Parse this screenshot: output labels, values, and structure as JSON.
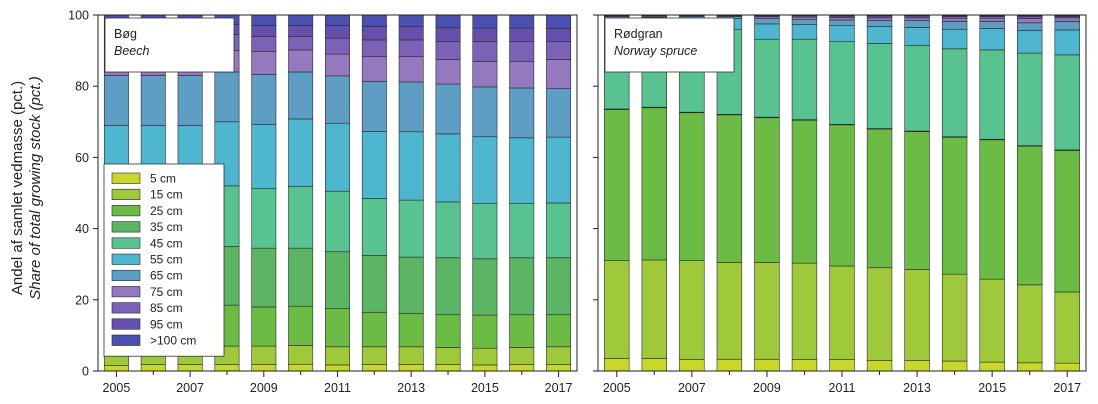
{
  "y_label_line1": "Andel af samlet vedmasse (pct.)",
  "y_label_line2": "Share of total growing stock (pct.)",
  "chart_data": {
    "type": "bar",
    "stacked": true,
    "ylim": [
      0,
      100
    ],
    "yticks": [
      "0",
      "20",
      "40",
      "60",
      "80",
      "100"
    ],
    "x": [
      "2005",
      "2006",
      "2007",
      "2008",
      "2009",
      "2010",
      "2011",
      "2012",
      "2013",
      "2014",
      "2015",
      "2016",
      "2017"
    ],
    "xtick_labels": [
      "2005",
      "2007",
      "2009",
      "2011",
      "2013",
      "2015",
      "2017"
    ],
    "legend": {
      "placement": "lower-left of left panel",
      "labels": [
        "5 cm",
        "15 cm",
        "25 cm",
        "35 cm",
        "45 cm",
        "55 cm",
        "65 cm",
        "75 cm",
        "85 cm",
        "95 cm",
        ">100 cm"
      ],
      "colors": [
        "#c8d82a",
        "#9fc93a",
        "#6bbb45",
        "#5bb565",
        "#58c291",
        "#4eb6cf",
        "#5f9ec4",
        "#9579bf",
        "#7b62b7",
        "#6550ad",
        "#4b4faf"
      ]
    },
    "panels": [
      {
        "name_line1": "Bøg",
        "name_line2": "Beech",
        "series_cumulative": [
          [
            1.5,
            1.8,
            1.8,
            1.8,
            1.8,
            1.9,
            1.7,
            1.8,
            1.8,
            1.8,
            1.7,
            1.8,
            1.8
          ],
          [
            6.8,
            7.0,
            7.0,
            7.0,
            7.0,
            7.2,
            6.8,
            6.8,
            6.8,
            6.6,
            6.4,
            6.6,
            6.8
          ],
          [
            18.0,
            18.0,
            18.3,
            18.5,
            18.0,
            18.2,
            17.5,
            16.5,
            16.2,
            15.8,
            15.7,
            15.8,
            15.8
          ],
          [
            34.5,
            34.7,
            35.0,
            35.0,
            34.5,
            34.5,
            33.5,
            32.5,
            32.0,
            31.8,
            31.5,
            31.8,
            31.8
          ],
          [
            52.0,
            52.0,
            52.0,
            52.0,
            51.2,
            51.8,
            50.5,
            48.5,
            48.0,
            47.5,
            47.0,
            47.0,
            47.2
          ],
          [
            69.0,
            69.0,
            69.0,
            70.0,
            69.3,
            70.8,
            69.6,
            67.3,
            67.2,
            66.6,
            65.8,
            65.5,
            65.7
          ],
          [
            83.0,
            83.0,
            83.0,
            84.0,
            83.3,
            84.0,
            82.9,
            81.3,
            81.2,
            80.6,
            79.8,
            79.5,
            79.3
          ],
          [
            90.0,
            89.5,
            90.0,
            90.0,
            89.8,
            90.2,
            89.0,
            88.3,
            88.3,
            87.5,
            86.9,
            87.0,
            87.5
          ],
          [
            94.5,
            94.0,
            94.5,
            94.5,
            94.0,
            94.0,
            93.5,
            93.0,
            93.0,
            92.6,
            92.6,
            92.5,
            92.5
          ],
          [
            97.3,
            97.0,
            97.3,
            97.3,
            97.0,
            97.0,
            97.0,
            96.8,
            96.7,
            96.4,
            96.3,
            96.3,
            96.2
          ],
          [
            100,
            100,
            100,
            100,
            100,
            100,
            100,
            100,
            100,
            100,
            100,
            100,
            100
          ]
        ]
      },
      {
        "name_line1": "Rødgran",
        "name_line2": "Norway spruce",
        "series_cumulative": [
          [
            3.5,
            3.5,
            3.2,
            3.3,
            3.3,
            3.2,
            3.2,
            3.0,
            3.0,
            2.8,
            2.5,
            2.3,
            2.2
          ],
          [
            31.0,
            31.2,
            31.0,
            30.5,
            30.5,
            30.3,
            29.5,
            29.0,
            28.5,
            27.2,
            25.8,
            24.2,
            22.2
          ],
          [
            73.5,
            74.0,
            72.6,
            72.0,
            71.2,
            70.5,
            69.2,
            68.0,
            67.3,
            65.7,
            65.0,
            63.2,
            62.0
          ],
          [
            73.6,
            74.1,
            72.7,
            72.1,
            71.3,
            70.6,
            69.3,
            68.1,
            67.4,
            65.8,
            65.1,
            63.3,
            62.1
          ],
          [
            95.0,
            96.0,
            96.0,
            96.0,
            93.2,
            93.2,
            92.5,
            92.0,
            91.5,
            90.5,
            90.2,
            89.3,
            88.8
          ],
          [
            98.0,
            98.8,
            99.0,
            99.0,
            97.5,
            97.3,
            97.0,
            96.8,
            96.5,
            96.0,
            96.2,
            95.7,
            95.8
          ],
          [
            99.2,
            99.4,
            99.6,
            99.6,
            99.0,
            98.8,
            98.6,
            98.5,
            98.5,
            98.2,
            98.2,
            97.8,
            98.2
          ],
          [
            99.6,
            99.7,
            99.8,
            99.8,
            99.5,
            99.4,
            99.3,
            99.2,
            99.2,
            99.1,
            99.1,
            99.0,
            99.2
          ],
          [
            99.8,
            99.9,
            99.9,
            99.9,
            99.8,
            99.8,
            99.7,
            99.7,
            99.7,
            99.6,
            99.6,
            99.5,
            99.6
          ],
          [
            99.9,
            100,
            100,
            100,
            99.9,
            99.9,
            99.9,
            99.9,
            99.9,
            99.8,
            99.8,
            99.8,
            99.8
          ],
          [
            100,
            100,
            100,
            100,
            100,
            100,
            100,
            100,
            100,
            100,
            100,
            100,
            100
          ]
        ]
      }
    ]
  }
}
